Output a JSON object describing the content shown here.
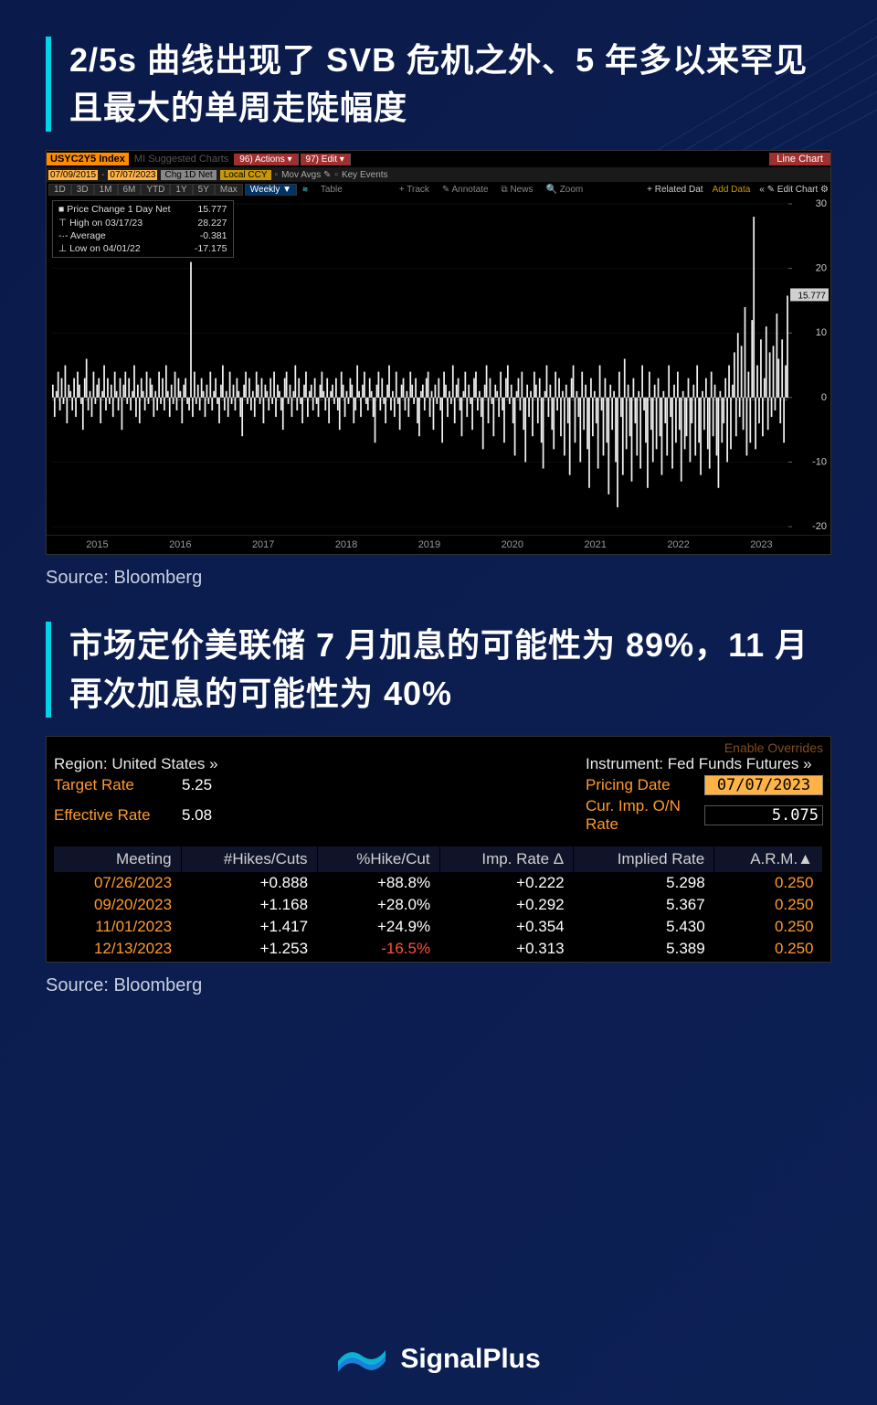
{
  "page": {
    "background_color": "#0a1a4a",
    "accent_color": "#00d4e6"
  },
  "section1": {
    "headline": "2/5s 曲线出现了 SVB 危机之外、5 年多以来罕见且最大的单周走陡幅度",
    "headline_fontsize": 36,
    "headline_weight": 700,
    "source": "Source: Bloomberg"
  },
  "bbg_chart": {
    "ticker": "USYC2Y5 Index",
    "suggested_label": "MI Suggested Charts",
    "actions_btn": "96) Actions ▾",
    "edit_btn": "97) Edit ▾",
    "chart_type_label": "Line Chart",
    "date_from": "07/09/2015",
    "date_to": "07/07/2023",
    "chg_label": "Chg 1D Net",
    "ccy_label": "Local CCY",
    "movavg_label": "Mov Avgs ✎",
    "keyevents_label": "Key Events",
    "range_tabs": [
      "1D",
      "3D",
      "1M",
      "6M",
      "YTD",
      "1Y",
      "5Y",
      "Max"
    ],
    "freq_label": "Weekly ▼",
    "table_label": "Table",
    "tools": [
      "+ Track",
      "✎ Annotate",
      "⧉ News",
      "🔍 Zoom"
    ],
    "related_label": "+ Related Dat",
    "adddata_label": "Add Data",
    "editchart_label": "« ✎ Edit Chart ⚙",
    "legend": {
      "title": "Price Change 1 Day Net",
      "last": "15.777",
      "high_label": "High on 03/17/23",
      "high": "28.227",
      "avg_label": "Average",
      "avg": "-0.381",
      "low_label": "Low on 04/01/22",
      "low": "-17.175"
    },
    "y_axis": {
      "min": -20,
      "max": 30,
      "ticks": [
        -20,
        -10,
        0,
        10,
        20,
        30
      ],
      "annotation": "15.777",
      "grid_color": "#1a1a1a",
      "axis_color": "#666",
      "zero_color": "#555",
      "bar_color": "#f0f0f0",
      "annotation_bg": "#d0d0d0",
      "annotation_fg": "#000"
    },
    "x_axis": {
      "labels": [
        "2015",
        "2016",
        "2017",
        "2018",
        "2019",
        "2020",
        "2021",
        "2022",
        "2023"
      ]
    },
    "series": [
      2,
      -3,
      1,
      4,
      -2,
      3,
      -1,
      5,
      -4,
      2,
      1,
      -2,
      3,
      -3,
      4,
      2,
      -1,
      -5,
      3,
      6,
      -2,
      1,
      -3,
      4,
      -1,
      2,
      3,
      -4,
      1,
      5,
      -2,
      3,
      -1,
      2,
      -3,
      4,
      1,
      -2,
      3,
      -5,
      2,
      4,
      -1,
      3,
      -2,
      1,
      5,
      -3,
      2,
      -4,
      3,
      1,
      -2,
      4,
      -1,
      3,
      2,
      -3,
      1,
      -2,
      4,
      -1,
      3,
      -2,
      5,
      1,
      -3,
      2,
      -1,
      4,
      -2,
      3,
      1,
      -4,
      2,
      3,
      -1,
      -2,
      21,
      -3,
      4,
      -1,
      2,
      -2,
      3,
      1,
      -3,
      2,
      -1,
      4,
      -2,
      1,
      3,
      -1,
      -4,
      2,
      5,
      -2,
      1,
      -3,
      4,
      -1,
      2,
      -2,
      3,
      1,
      -3,
      -6,
      2,
      4,
      -1,
      3,
      -2,
      1,
      -3,
      4,
      2,
      -1,
      3,
      -4,
      2,
      1,
      -2,
      3,
      -1,
      4,
      -3,
      2,
      1,
      -2,
      -5,
      3,
      4,
      -1,
      2,
      -3,
      1,
      5,
      -2,
      3,
      -1,
      -4,
      2,
      4,
      -3,
      1,
      2,
      -2,
      3,
      -1,
      -3,
      2,
      4,
      1,
      -2,
      3,
      -4,
      1,
      2,
      -1,
      3,
      -2,
      -5,
      4,
      2,
      -3,
      1,
      -1,
      3,
      2,
      -4,
      -2,
      5,
      1,
      -3,
      2,
      4,
      -1,
      -2,
      3,
      1,
      -3,
      -7,
      2,
      4,
      -2,
      3,
      -1,
      -4,
      2,
      5,
      -2,
      1,
      -3,
      4,
      -1,
      -5,
      2,
      3,
      -2,
      1,
      -3,
      4,
      2,
      -1,
      3,
      -4,
      -6,
      1,
      2,
      -2,
      3,
      4,
      -3,
      1,
      -5,
      2,
      -1,
      3,
      -2,
      -7,
      4,
      2,
      -3,
      1,
      -1,
      5,
      -4,
      2,
      3,
      -2,
      -6,
      1,
      4,
      -3,
      2,
      -1,
      -5,
      3,
      4,
      -2,
      1,
      -3,
      -8,
      2,
      5,
      -4,
      3,
      -1,
      -6,
      2,
      1,
      -3,
      4,
      -2,
      -7,
      3,
      5,
      -1,
      2,
      -4,
      -9,
      1,
      3,
      -2,
      4,
      -5,
      -10,
      2,
      -3,
      1,
      -6,
      4,
      2,
      -4,
      3,
      -7,
      -11,
      1,
      5,
      -3,
      2,
      -5,
      -8,
      4,
      -2,
      3,
      -6,
      1,
      -9,
      2,
      -4,
      -12,
      3,
      5,
      -7,
      1,
      -3,
      -10,
      4,
      -5,
      2,
      -8,
      -14,
      3,
      -6,
      1,
      -4,
      -11,
      5,
      -2,
      -9,
      3,
      -7,
      -15,
      2,
      -5,
      1,
      -10,
      -17,
      4,
      -3,
      -12,
      6,
      -8,
      2,
      -6,
      -13,
      3,
      -4,
      -9,
      1,
      -11,
      5,
      -2,
      -7,
      -14,
      4,
      -5,
      -10,
      2,
      -8,
      3,
      -6,
      -12,
      1,
      -4,
      -9,
      5,
      -3,
      -11,
      2,
      -7,
      4,
      -5,
      -13,
      1,
      -8,
      -6,
      3,
      -10,
      -4,
      2,
      -9,
      5,
      -7,
      -12,
      1,
      -5,
      3,
      -8,
      -11,
      4,
      -6,
      2,
      -9,
      -14,
      1,
      -7,
      -4,
      3,
      -10,
      5,
      -8,
      2,
      7,
      -6,
      10,
      -3,
      8,
      -5,
      14,
      -9,
      4,
      -7,
      12,
      28,
      -8,
      5,
      -4,
      9,
      -6,
      3,
      11,
      -5,
      7,
      -3,
      8,
      -2,
      13,
      6,
      -4,
      9,
      -7,
      5,
      15.777
    ]
  },
  "section2": {
    "headline": "市场定价美联储 7 月加息的可能性为 89%，11 月再次加息的可能性为 40%",
    "source": "Source: Bloomberg"
  },
  "fed": {
    "enable_label": "Enable Overrides",
    "region_label": "Region: United States »",
    "instrument_label": "Instrument: Fed Funds Futures »",
    "target_rate_label": "Target Rate",
    "target_rate": "5.25",
    "effective_rate_label": "Effective Rate",
    "effective_rate": "5.08",
    "pricing_date_label": "Pricing Date",
    "pricing_date": "07/07/2023",
    "cur_imp_label": "Cur. Imp. O/N Rate",
    "cur_imp": "5.075",
    "columns": [
      "Meeting",
      "#Hikes/Cuts",
      "%Hike/Cut",
      "Imp. Rate Δ",
      "Implied Rate",
      "A.R.M.▲"
    ],
    "rows": [
      {
        "meeting": "07/26/2023",
        "hikes": "+0.888",
        "pct": "+88.8%",
        "delta": "+0.222",
        "rate": "5.298",
        "arm": "0.250",
        "neg": false
      },
      {
        "meeting": "09/20/2023",
        "hikes": "+1.168",
        "pct": "+28.0%",
        "delta": "+0.292",
        "rate": "5.367",
        "arm": "0.250",
        "neg": false
      },
      {
        "meeting": "11/01/2023",
        "hikes": "+1.417",
        "pct": "+24.9%",
        "delta": "+0.354",
        "rate": "5.430",
        "arm": "0.250",
        "neg": false
      },
      {
        "meeting": "12/13/2023",
        "hikes": "+1.253",
        "pct": "-16.5%",
        "delta": "+0.313",
        "rate": "5.389",
        "arm": "0.250",
        "neg": true
      }
    ],
    "colors": {
      "header_bg": "#10142a",
      "header_fg": "#d0d0d0",
      "cell_fg": "#ffffff",
      "orange": "#ff9a2e",
      "neg": "#ff5040",
      "bg": "#000000"
    }
  },
  "footer": {
    "brand": "SignalPlus",
    "logo_color1": "#0bbbd6",
    "logo_color2": "#1b7fdc"
  }
}
